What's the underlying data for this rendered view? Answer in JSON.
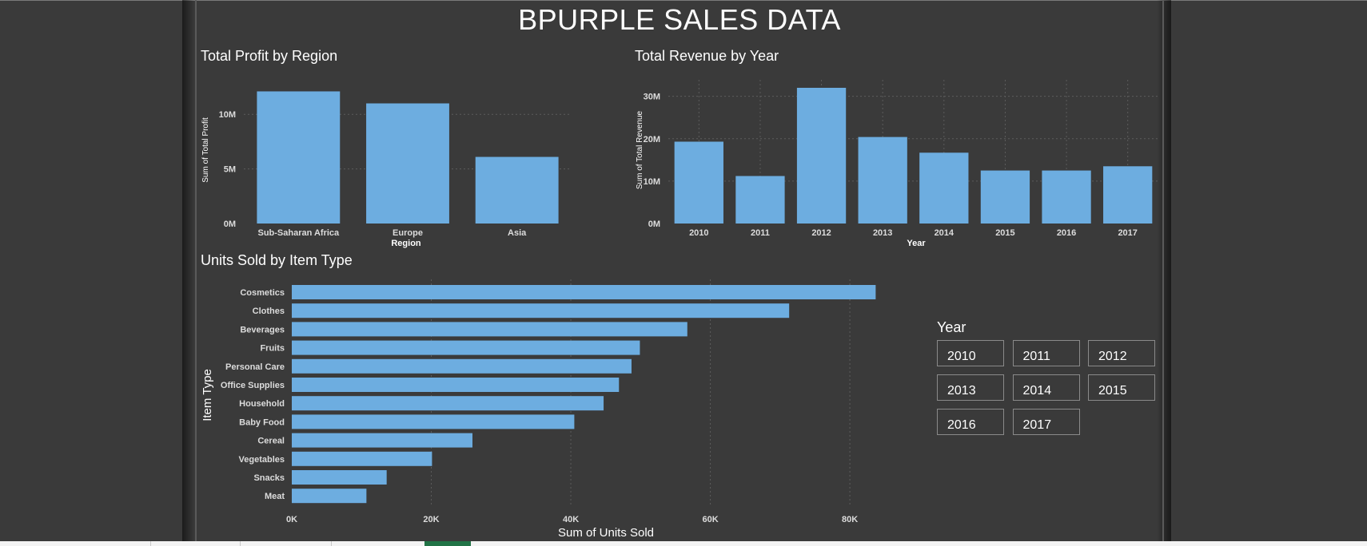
{
  "title": "BPURPLE SALES DATA",
  "colors": {
    "bar": "#6dade0",
    "background": "#3a3a3a",
    "grid": "#5c5c5c",
    "active_tab": "#217346"
  },
  "profit_chart": {
    "title": "Total Profit by Region",
    "chart_data": {
      "type": "bar",
      "categories": [
        "Sub-Saharan Africa",
        "Europe",
        "Asia"
      ],
      "values": [
        12.1,
        11.0,
        6.1
      ],
      "xlabel": "Region",
      "ylabel": "Sum of Total Profit",
      "yticks": [
        0,
        5,
        10
      ],
      "ytick_labels": [
        "0M",
        "5M",
        "10M"
      ],
      "ylim": [
        0,
        12.5
      ]
    }
  },
  "revenue_chart": {
    "title": "Total Revenue by Year",
    "chart_data": {
      "type": "bar",
      "categories": [
        "2010",
        "2011",
        "2012",
        "2013",
        "2014",
        "2015",
        "2016",
        "2017"
      ],
      "values": [
        19.3,
        11.2,
        32.0,
        20.4,
        16.7,
        12.5,
        12.5,
        13.5
      ],
      "xlabel": "Year",
      "ylabel": "Sum of Total Revenue",
      "yticks": [
        0,
        10,
        20,
        30
      ],
      "ytick_labels": [
        "0M",
        "10M",
        "20M",
        "30M"
      ],
      "ylim": [
        0,
        32
      ]
    }
  },
  "units_chart": {
    "title": "Units Sold by Item Type",
    "chart_data": {
      "type": "bar",
      "orientation": "horizontal",
      "categories": [
        "Cosmetics",
        "Clothes",
        "Beverages",
        "Fruits",
        "Personal Care",
        "Office Supplies",
        "Household",
        "Baby Food",
        "Cereal",
        "Vegetables",
        "Snacks",
        "Meat"
      ],
      "values": [
        83700,
        71300,
        56700,
        49900,
        48700,
        46900,
        44700,
        40500,
        25900,
        20100,
        13600,
        10700
      ],
      "xlabel": "Sum of Units Sold",
      "ylabel": "Item Type",
      "xticks": [
        0,
        20000,
        40000,
        60000,
        80000
      ],
      "xtick_labels": [
        "0K",
        "20K",
        "40K",
        "60K",
        "80K"
      ],
      "xlim": [
        0,
        84000
      ]
    }
  },
  "year_slicer": {
    "title": "Year",
    "options": [
      "2010",
      "2011",
      "2012",
      "2013",
      "2014",
      "2015",
      "2016",
      "2017"
    ]
  }
}
